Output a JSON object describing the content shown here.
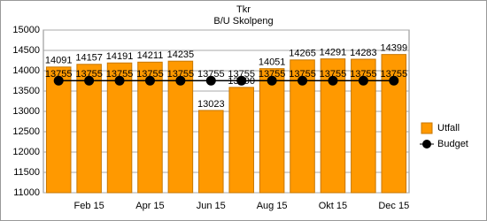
{
  "chart_data": {
    "type": "bar",
    "title": "Tkr",
    "subtitle": "B/U Skolpeng",
    "categories": [
      null,
      "Feb 15",
      null,
      "Apr 15",
      null,
      "Jun 15",
      null,
      "Aug 15",
      null,
      "Okt 15",
      null,
      "Dec 15"
    ],
    "series": [
      {
        "name": "Utfall",
        "type": "bar",
        "color": "#ff9900",
        "values": [
          14091,
          14157,
          14191,
          14211,
          14235,
          13023,
          13590,
          14051,
          14265,
          14291,
          14283,
          14399
        ]
      },
      {
        "name": "Budget",
        "type": "line",
        "color": "#000000",
        "values": [
          13755,
          13755,
          13755,
          13755,
          13755,
          13755,
          13755,
          13755,
          13755,
          13755,
          13755,
          13755
        ]
      }
    ],
    "ylim": [
      11000,
      15000
    ],
    "yticks": [
      11000,
      11500,
      12000,
      12500,
      13000,
      13500,
      14000,
      14500,
      15000
    ],
    "grid": true,
    "legend": "right"
  }
}
